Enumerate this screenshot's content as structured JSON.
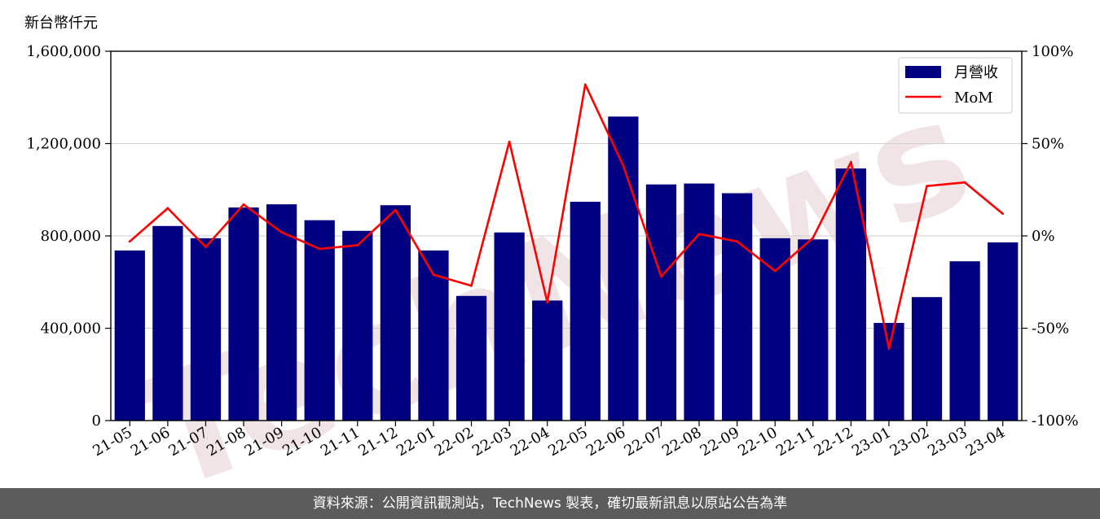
{
  "chart_data": {
    "type": "bar",
    "ylabel": "新台幣仟元",
    "categories": [
      "21-05",
      "21-06",
      "21-07",
      "21-08",
      "21-09",
      "21-10",
      "21-11",
      "21-12",
      "22-01",
      "22-02",
      "22-03",
      "22-04",
      "22-05",
      "22-06",
      "22-07",
      "22-08",
      "22-09",
      "22-10",
      "22-11",
      "22-12",
      "23-01",
      "23-02",
      "23-03",
      "23-04"
    ],
    "series": [
      {
        "name": "月營收",
        "type": "bar",
        "axis": "left",
        "color": "#000080",
        "values": [
          737000,
          843000,
          790000,
          923000,
          937000,
          868000,
          822000,
          933000,
          737000,
          540000,
          815000,
          520000,
          948000,
          1317000,
          1023000,
          1027000,
          985000,
          790000,
          785000,
          1092000,
          423000,
          535000,
          690000,
          772000
        ]
      },
      {
        "name": "MoM",
        "type": "line",
        "axis": "right",
        "color": "#ff0000",
        "values": [
          -3,
          15,
          -6,
          17,
          2,
          -7,
          -5,
          14,
          -21,
          -27,
          51,
          -36,
          82,
          38,
          -22,
          1,
          -3,
          -19,
          -1,
          40,
          -61,
          27,
          29,
          12
        ]
      }
    ],
    "ylim": [
      0,
      1600000
    ],
    "y2lim": [
      -100,
      100
    ],
    "yticks": [
      "0",
      "400,000",
      "800,000",
      "1,200,000",
      "1,600,000"
    ],
    "y2ticks": [
      "-100%",
      "-50%",
      "0%",
      "50%",
      "100%"
    ],
    "grid": "horizontal",
    "legend_position": "top-right"
  },
  "watermark": "TechNews",
  "footer": {
    "text": "資料來源：公開資訊觀測站，TechNews 製表，確切最新訊息以原站公告為準"
  }
}
